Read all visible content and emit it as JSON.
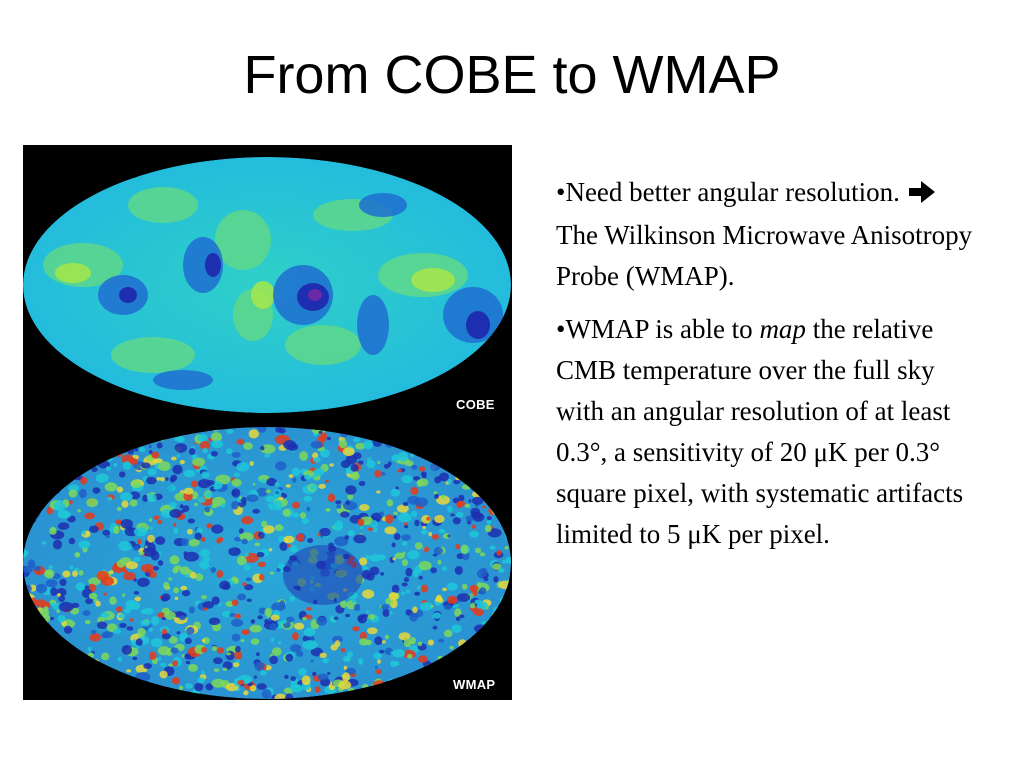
{
  "slide": {
    "title": "From COBE to WMAP"
  },
  "figure": {
    "cobe_label": "COBE",
    "wmap_label": "WMAP",
    "colors": {
      "background": "#000000",
      "cold": "#1d2fb0",
      "mid": "#1ec8d8",
      "warm": "#7cd85a",
      "hot": "#e63a1a"
    }
  },
  "bullets": [
    {
      "marker": "•",
      "text_before": "Need better angular resolution.",
      "arrow_icon": "right-arrow-icon",
      "text_after": "The Wilkinson Microwave Anisotropy Probe (WMAP)."
    },
    {
      "marker": "•",
      "text_before": "WMAP is able to",
      "emphasis": "map",
      "text_after": "the relative CMB temperature over the full sky with an angular resolution of at least 0.3°, a sensitivity of 20 μK per 0.3° square pixel, with systematic artifacts limited to 5 μK per pixel."
    }
  ]
}
